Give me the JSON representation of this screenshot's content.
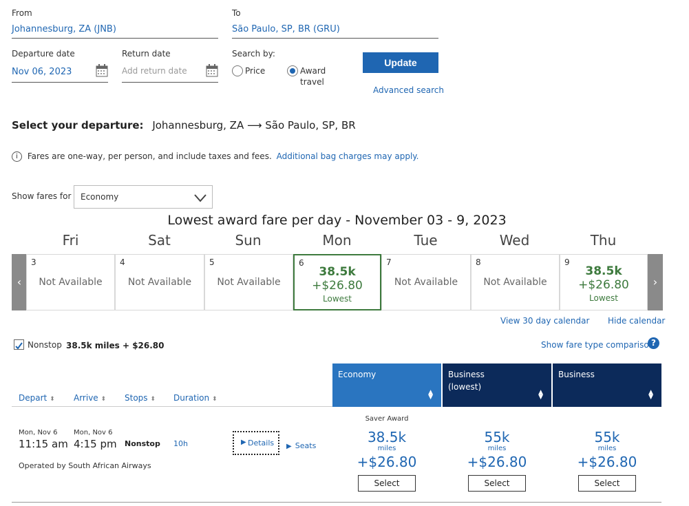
{
  "search": {
    "from_label": "From",
    "from_value": "Johannesburg, ZA (JNB)",
    "to_label": "To",
    "to_value": "São Paulo, SP, BR (GRU)",
    "departure_label": "Departure date",
    "departure_value": "Nov 06, 2023",
    "return_label": "Return date",
    "return_placeholder": "Add return date",
    "search_by_label": "Search by:",
    "option_price": "Price",
    "option_award_line1": "Award",
    "option_award_line2": "travel",
    "selected_option": "award",
    "update_label": "Update",
    "advanced_label": "Advanced search"
  },
  "departure": {
    "heading_bold": "Select your departure:",
    "route": "Johannesburg, ZA ⟶ São Paulo, SP, BR"
  },
  "notice": {
    "text": "Fares are one-way, per person, and include taxes and fees.",
    "link": "Additional bag charges may apply."
  },
  "fares_filter": {
    "label": "Show fares for",
    "selected": "Economy"
  },
  "calendar": {
    "title": "Lowest award fare per day - November 03 - 9, 2023",
    "days": [
      {
        "name": "Fri",
        "date": "3",
        "status": "Not Available"
      },
      {
        "name": "Sat",
        "date": "4",
        "status": "Not Available"
      },
      {
        "name": "Sun",
        "date": "5",
        "status": "Not Available"
      },
      {
        "name": "Mon",
        "date": "6",
        "miles": "38.5k",
        "cash": "+$26.80",
        "note": "Lowest",
        "selected": true
      },
      {
        "name": "Tue",
        "date": "7",
        "status": "Not Available"
      },
      {
        "name": "Wed",
        "date": "8",
        "status": "Not Available"
      },
      {
        "name": "Thu",
        "date": "9",
        "miles": "38.5k",
        "cash": "+$26.80",
        "note": "Lowest"
      }
    ],
    "view30_label": "View 30 day calendar",
    "hide_label": "Hide calendar"
  },
  "filters": {
    "nonstop_label": "Nonstop",
    "nonstop_checked": true,
    "nonstop_price": "38.5k miles + $26.80",
    "comparison_label": "Show fare type comparison"
  },
  "table": {
    "headers": {
      "depart": "Depart",
      "arrive": "Arrive",
      "stops": "Stops",
      "duration": "Duration"
    },
    "fare_columns": [
      {
        "line1": "Economy",
        "line2": "",
        "color": "#2a75c0"
      },
      {
        "line1": "Business",
        "line2": "(lowest)",
        "color": "#0c2a5a"
      },
      {
        "line1": "Business",
        "line2": "",
        "color": "#0c2a5a"
      }
    ],
    "flight": {
      "depart_date": "Mon, Nov 6",
      "depart_time": "11:15 am",
      "arrive_date": "Mon, Nov 6",
      "arrive_time": "4:15 pm",
      "stops": "Nonstop",
      "duration": "10h",
      "details_label": "Details",
      "seats_label": "Seats",
      "operated_by": "Operated by South African Airways",
      "fares": [
        {
          "tag": "Saver Award",
          "miles": "38.5k",
          "unit": "miles",
          "cash": "+$26.80",
          "select": "Select"
        },
        {
          "tag": "",
          "miles": "55k",
          "unit": "miles",
          "cash": "+$26.80",
          "select": "Select"
        },
        {
          "tag": "",
          "miles": "55k",
          "unit": "miles",
          "cash": "+$26.80",
          "select": "Select"
        }
      ]
    }
  }
}
